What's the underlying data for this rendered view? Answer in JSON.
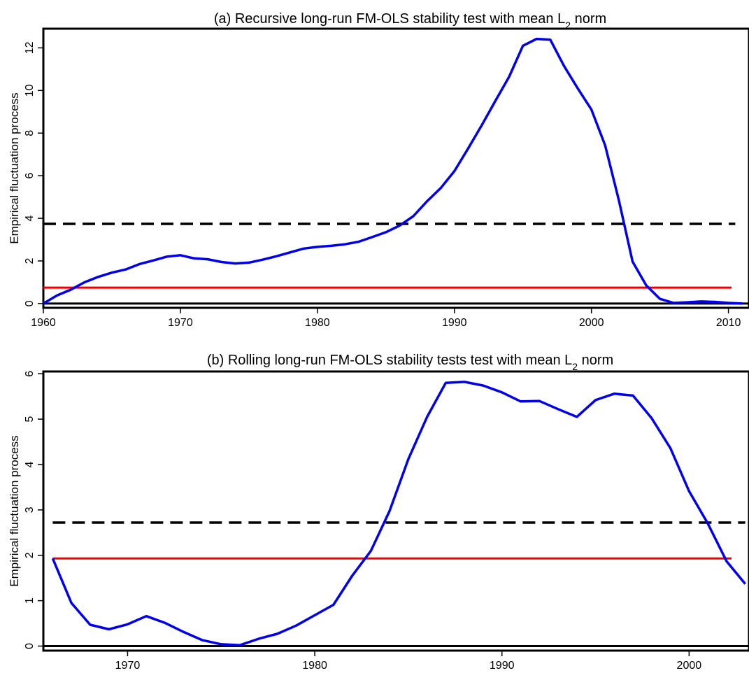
{
  "chart_data": [
    {
      "type": "line",
      "title": "(a) Recursive long-run FM-OLS stability test with mean L",
      "title_sub": "2",
      "title_end": " norm",
      "ylabel": "Empirical fluctuation process",
      "xlabel": "",
      "xlim": [
        1960,
        2011.5
      ],
      "ylim": [
        -0.2,
        12.9
      ],
      "xticks": [
        1960,
        1970,
        1980,
        1990,
        2000,
        2010
      ],
      "yticks": [
        0,
        2,
        4,
        6,
        8,
        10,
        12
      ],
      "zero_line": 0,
      "critical_value": 3.74,
      "critical_end": 2010.5,
      "average_value": 0.75,
      "colors": {
        "process": "#0000ee",
        "critical": "#000000",
        "average": "#ee0000"
      },
      "series": [
        {
          "x": [
            1960,
            1961,
            1962,
            1963,
            1964,
            1965,
            1966,
            1967,
            1968,
            1969,
            1970,
            1971,
            1972,
            1973,
            1974,
            1975,
            1976,
            1977,
            1978,
            1979,
            1980,
            1981,
            1982,
            1983,
            1984,
            1985,
            1986,
            1987,
            1988,
            1989,
            1990,
            1991,
            1992,
            1993,
            1994,
            1995,
            1996,
            1997,
            1998,
            1999,
            2000,
            2001,
            2002,
            2003,
            2004,
            2005,
            2006,
            2007,
            2008,
            2009,
            2010,
            2011
          ],
          "y": [
            0,
            0.38,
            0.65,
            1.0,
            1.25,
            1.45,
            1.6,
            1.85,
            2.02,
            2.2,
            2.27,
            2.12,
            2.08,
            1.95,
            1.88,
            1.92,
            2.06,
            2.22,
            2.4,
            2.58,
            2.66,
            2.71,
            2.78,
            2.9,
            3.12,
            3.35,
            3.66,
            4.1,
            4.8,
            5.42,
            6.22,
            7.28,
            8.38,
            9.52,
            10.65,
            12.1,
            12.42,
            12.38,
            11.15,
            10.1,
            9.1,
            7.42,
            4.85,
            1.97,
            0.85,
            0.22,
            0.03,
            0.06,
            0.1,
            0.08,
            0.03,
            0.0
          ]
        }
      ]
    },
    {
      "type": "line",
      "title": "(b) Rolling long-run FM-OLS stability tests test with mean L",
      "title_sub": "2",
      "title_end": " norm",
      "ylabel": "Empirical fluctuation process",
      "xlabel": "",
      "xlim": [
        1965.5,
        2003.2
      ],
      "ylim": [
        -0.1,
        6.05
      ],
      "xticks": [
        1970,
        1980,
        1990,
        2000
      ],
      "yticks": [
        0,
        1,
        2,
        3,
        4,
        5,
        6
      ],
      "zero_line": 0,
      "critical_value": 2.72,
      "critical_end": 2003,
      "average_value": 1.93,
      "colors": {
        "process": "#0000ee",
        "critical": "#000000",
        "average": "#ee0000"
      },
      "series": [
        {
          "x": [
            1966,
            1967,
            1968,
            1969,
            1970,
            1971,
            1972,
            1973,
            1974,
            1975,
            1976,
            1977,
            1978,
            1979,
            1980,
            1981,
            1982,
            1983,
            1984,
            1985,
            1986,
            1987,
            1988,
            1989,
            1990,
            1991,
            1992,
            1993,
            1994,
            1995,
            1996,
            1997,
            1998,
            1999,
            2000,
            2001,
            2002,
            2003
          ],
          "y": [
            1.93,
            0.95,
            0.47,
            0.37,
            0.48,
            0.66,
            0.51,
            0.31,
            0.13,
            0.04,
            0.02,
            0.16,
            0.27,
            0.45,
            0.68,
            0.91,
            1.55,
            2.1,
            2.98,
            4.12,
            5.05,
            5.8,
            5.82,
            5.74,
            5.59,
            5.39,
            5.4,
            5.22,
            5.05,
            5.42,
            5.56,
            5.52,
            5.02,
            4.36,
            3.41,
            2.7,
            1.87,
            1.37
          ]
        }
      ]
    }
  ]
}
